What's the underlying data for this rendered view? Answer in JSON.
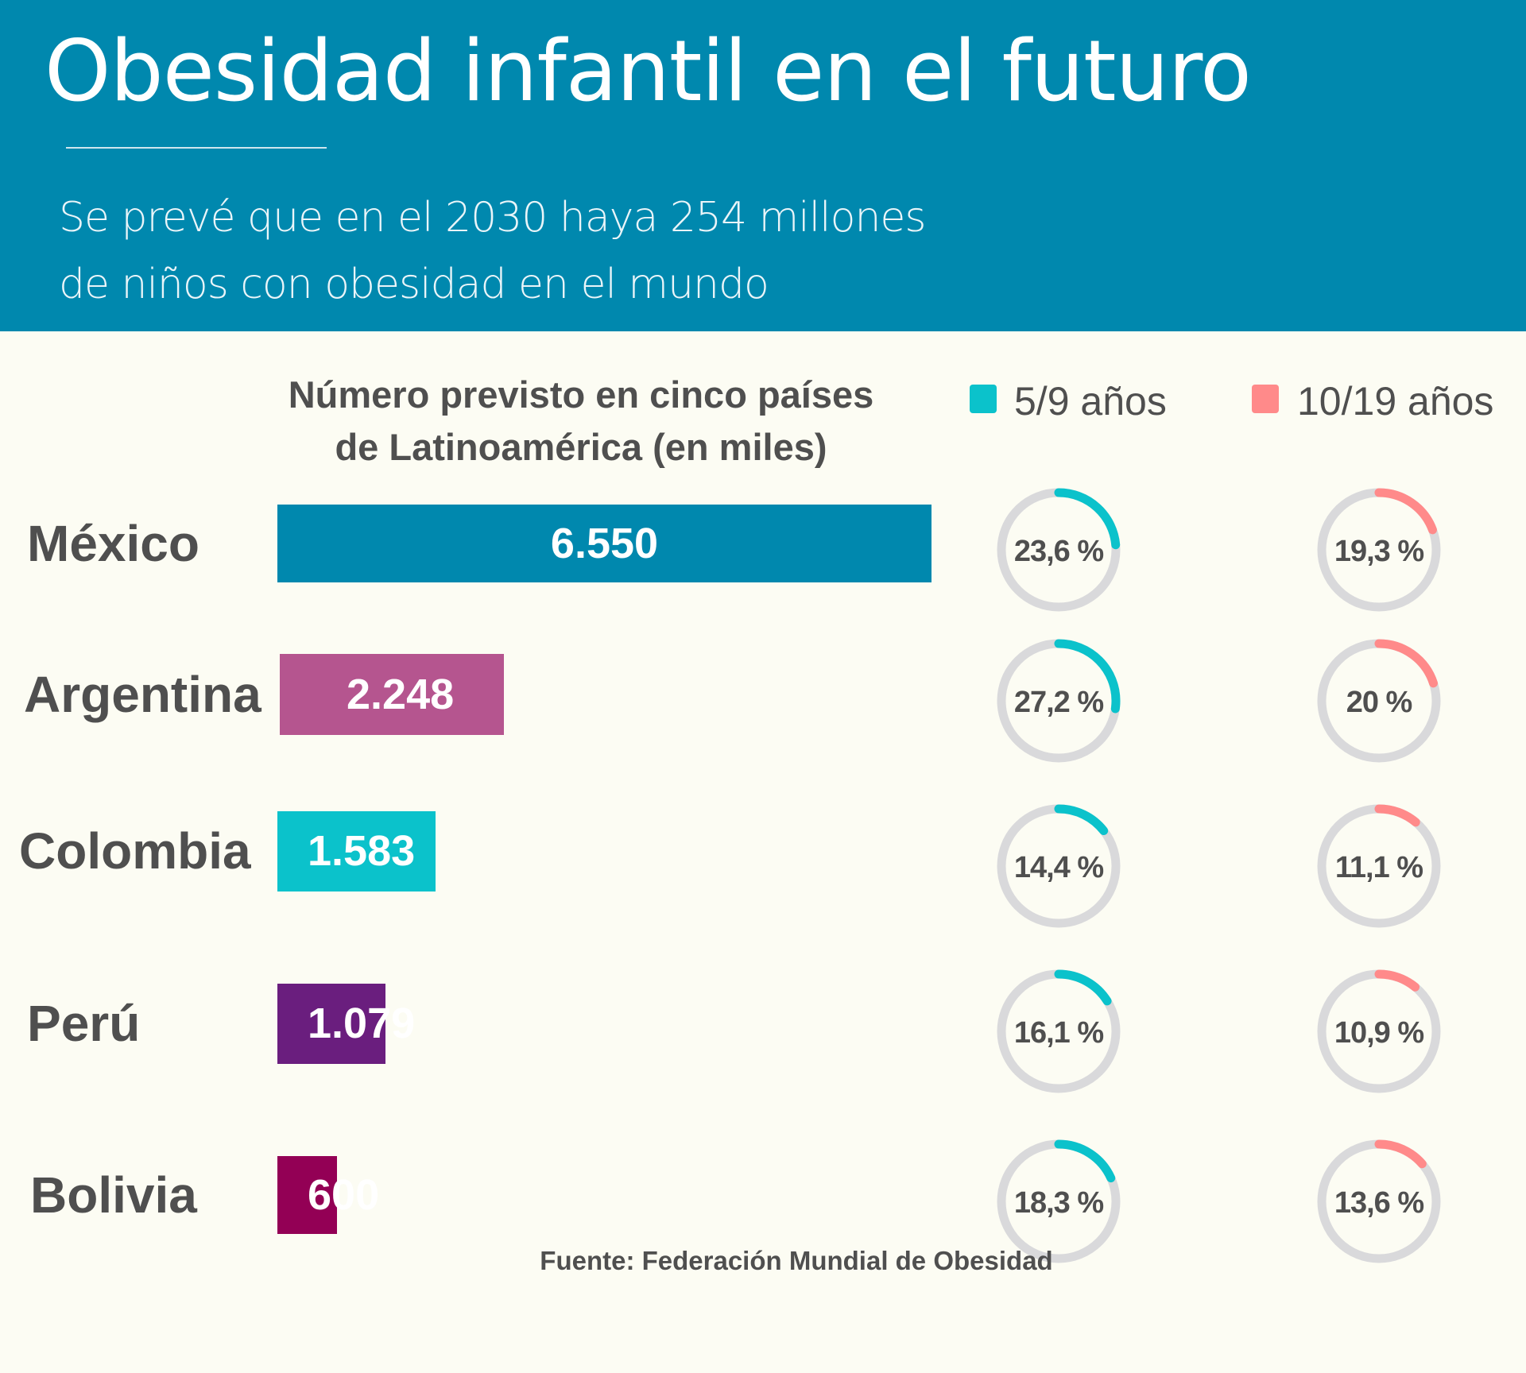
{
  "header": {
    "title": "Obesidad infantil en el futuro",
    "subtitle_lines": [
      "Se prevé que en el 2030 haya 254 millones",
      "de niños con obesidad en el mundo"
    ],
    "background_color": "#0088ae"
  },
  "chart_data": [
    {
      "type": "bar",
      "orientation": "horizontal",
      "title_lines": [
        "Número previsto en cinco países",
        "de Latinoamérica (en miles)"
      ],
      "categories": [
        "México",
        "Argentina",
        "Colombia",
        "Perú",
        "Bolivia"
      ],
      "values": [
        6550,
        2248,
        1583,
        1079,
        600
      ],
      "value_labels": [
        "6.550",
        "2.248",
        "1.583",
        "1.079",
        "600"
      ],
      "colors": [
        "#0088ae",
        "#b5558f",
        "#0bc2cb",
        "#6a1e7e",
        "#930055"
      ],
      "xlabel": "",
      "ylabel": "",
      "grid": false
    },
    {
      "type": "pie",
      "variant": "donut-progress",
      "legend": [
        {
          "label": "5/9 años",
          "color": "#0bc2cb"
        },
        {
          "label": "10/19 años",
          "color": "#ff8a8a"
        }
      ],
      "legend_placement": "top-right",
      "categories": [
        "México",
        "Argentina",
        "Colombia",
        "Perú",
        "Bolivia"
      ],
      "series": [
        {
          "name": "5/9 años",
          "values": [
            23.6,
            27.2,
            14.4,
            16.1,
            18.3
          ],
          "labels": [
            "23,6 %",
            "27,2 %",
            "14,4 %",
            "16,1 %",
            "18,3 %"
          ]
        },
        {
          "name": "10/19 años",
          "values": [
            19.3,
            20,
            11.1,
            10.9,
            13.6
          ],
          "labels": [
            "19,3 %",
            "20 %",
            "11,1 %",
            "10,9 %",
            "13,6 %"
          ]
        }
      ],
      "track_color": "#d9d9db"
    }
  ],
  "footer": {
    "source": "Fuente: Federación Mundial de Obesidad"
  }
}
